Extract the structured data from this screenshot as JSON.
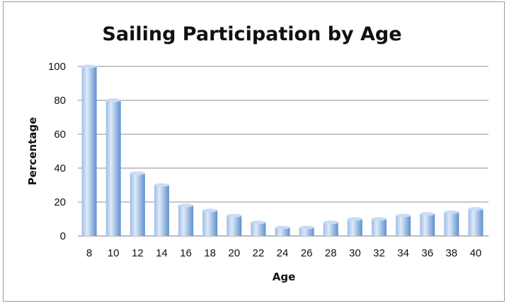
{
  "chart_data": {
    "type": "bar",
    "title": "Sailing Participation by Age",
    "xlabel": "Age",
    "ylabel": "Percentage",
    "categories": [
      "8",
      "10",
      "12",
      "14",
      "16",
      "18",
      "20",
      "22",
      "24",
      "26",
      "28",
      "30",
      "32",
      "34",
      "36",
      "38",
      "40"
    ],
    "values": [
      100,
      80,
      37,
      30,
      18,
      15,
      12,
      8,
      5,
      5,
      8,
      10,
      10,
      12,
      13,
      14,
      16
    ],
    "ylim": [
      0,
      100
    ],
    "yticks": [
      0,
      20,
      40,
      60,
      80,
      100
    ],
    "grid": true,
    "legend": "none",
    "colors": {
      "bar_light": "#dfeaf8",
      "bar_mid": "#9dbde6",
      "bar_dark": "#5f8fd0",
      "bar_top": "#c8dcf5",
      "gridline": "#8c8c8c",
      "axis": "#7a7a7a"
    }
  }
}
